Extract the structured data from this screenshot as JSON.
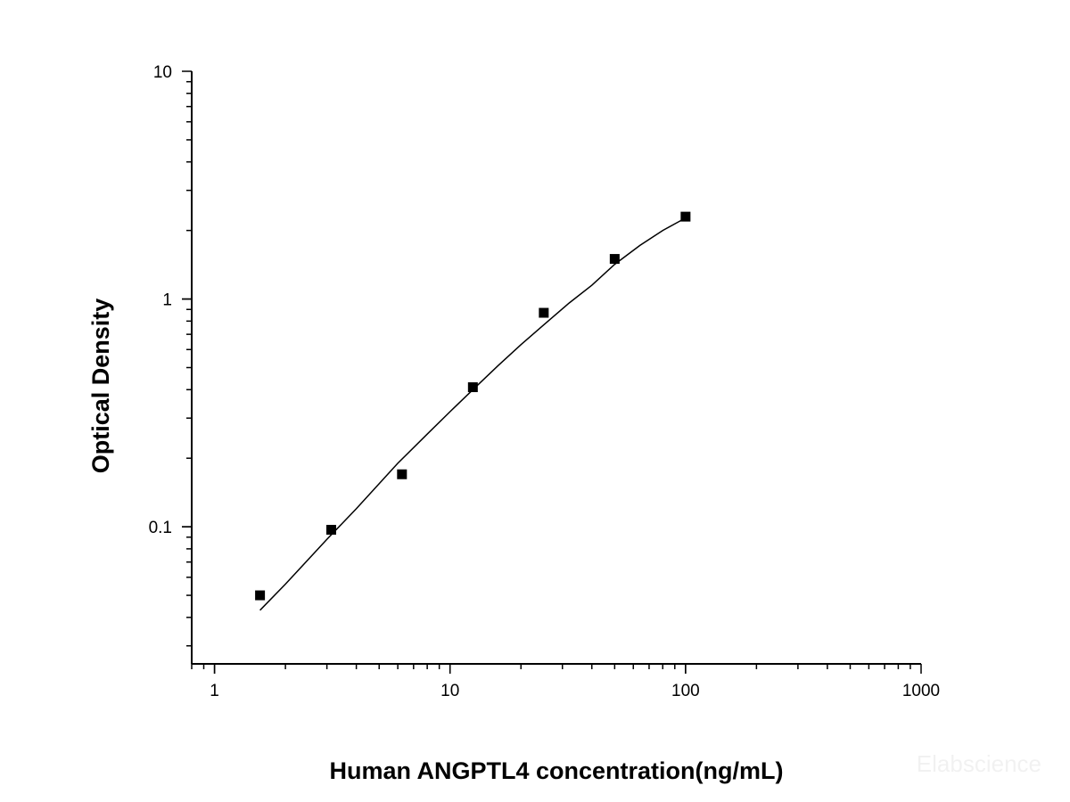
{
  "chart_data": {
    "type": "scatter",
    "title": "",
    "xlabel": "Human ANGPTL4 concentration(ng/mL)",
    "ylabel": "Optical Density",
    "xscale": "log",
    "yscale": "log",
    "xlim": [
      0.8,
      1000
    ],
    "ylim": [
      0.025,
      10
    ],
    "x_ticks": [
      "1",
      "10",
      "100",
      "1000"
    ],
    "y_ticks": [
      "0.1",
      "1",
      "10"
    ],
    "grid": false,
    "legend": "none",
    "series": [
      {
        "marker": "square",
        "color": "#000000",
        "x": [
          1.56,
          3.13,
          6.25,
          12.5,
          25,
          50,
          100
        ],
        "y": [
          0.05,
          0.097,
          0.17,
          0.41,
          0.87,
          1.5,
          2.3
        ]
      }
    ],
    "fit_curve": {
      "color": "#000000",
      "x": [
        1.56,
        2,
        3,
        4,
        6,
        8,
        10,
        12.5,
        16,
        20,
        25,
        32,
        40,
        50,
        64,
        80,
        100
      ],
      "y": [
        0.043,
        0.056,
        0.088,
        0.12,
        0.19,
        0.255,
        0.32,
        0.4,
        0.51,
        0.63,
        0.77,
        0.96,
        1.15,
        1.42,
        1.72,
        2.0,
        2.27
      ]
    },
    "watermark": "Elabscience"
  }
}
